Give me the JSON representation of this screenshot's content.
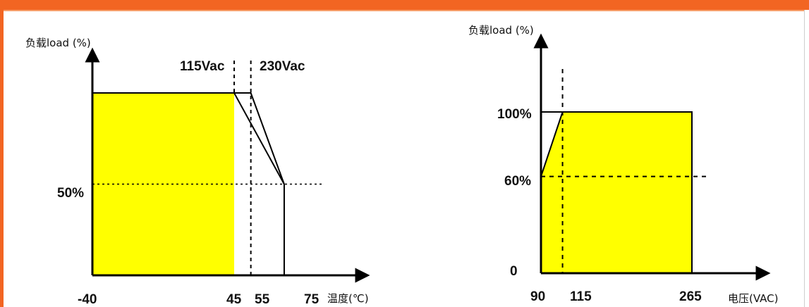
{
  "header": {
    "band_color": "#f26522"
  },
  "chart_data": [
    {
      "type": "area",
      "ylabel": "负载load (%)",
      "xlabel": "温度(℃)",
      "x_ticks": [
        "-40",
        "45",
        "55",
        "75"
      ],
      "y_ticks": [
        "50%"
      ],
      "annotations": [
        "115Vac",
        "230Vac"
      ],
      "xlim": [
        -40,
        80
      ],
      "ylim": [
        0,
        110
      ],
      "fill_color": "#ffff00",
      "series": [
        {
          "x": [
            -40,
            45,
            75
          ],
          "y": [
            100,
            100,
            50
          ]
        },
        {
          "x": [
            -40,
            55,
            75
          ],
          "y": [
            100,
            100,
            50
          ]
        }
      ]
    },
    {
      "type": "area",
      "ylabel": "负载load (%)",
      "xlabel": "电压(VAC)",
      "x_ticks": [
        "90",
        "115",
        "265"
      ],
      "y_ticks": [
        "100%",
        "60%",
        "0"
      ],
      "xlim": [
        90,
        280
      ],
      "ylim": [
        0,
        125
      ],
      "fill_color": "#ffff00",
      "series": [
        {
          "x": [
            90,
            115,
            265
          ],
          "y": [
            60,
            100,
            100
          ]
        }
      ]
    }
  ]
}
